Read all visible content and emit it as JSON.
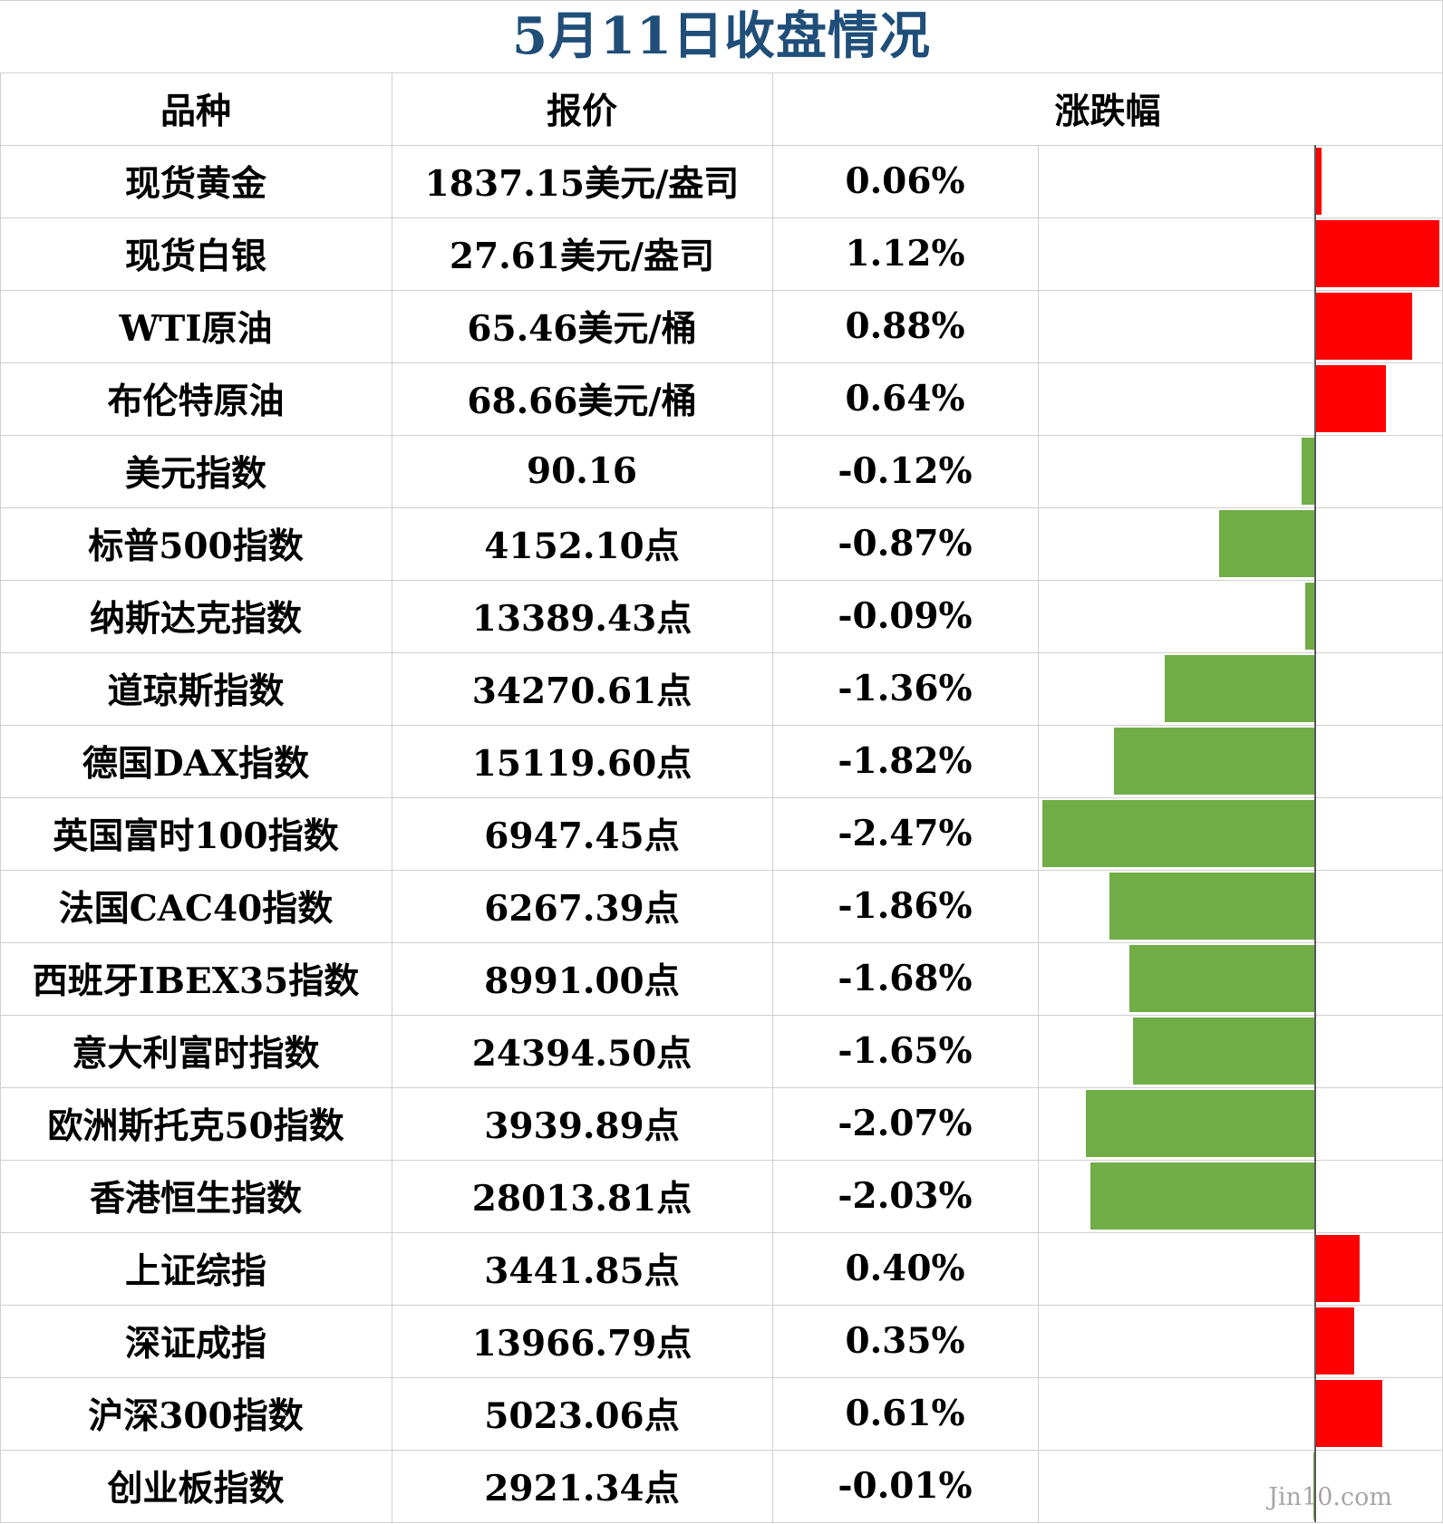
{
  "title": "5月11日收盘情况",
  "headers": {
    "name": "品种",
    "price": "报价",
    "change": "涨跌幅"
  },
  "colors": {
    "up": "#ff0000",
    "down": "#70ad47",
    "title": "#1f4e79"
  },
  "watermark": "Jin10.com",
  "chart_data": {
    "type": "bar",
    "orientation": "horizontal",
    "categories": [
      "现货黄金",
      "现货白银",
      "WTI原油",
      "布伦特原油",
      "美元指数",
      "标普500指数",
      "纳斯达克指数",
      "道琼斯指数",
      "德国DAX指数",
      "英国富时100指数",
      "法国CAC40指数",
      "西班牙IBEX35指数",
      "意大利富时指数",
      "欧洲斯托克50指数",
      "香港恒生指数",
      "上证综指",
      "深证成指",
      "沪深300指数",
      "创业板指数"
    ],
    "prices": [
      "1837.15美元/盎司",
      "27.61美元/盎司",
      "65.46美元/桶",
      "68.66美元/桶",
      "90.16",
      "4152.10点",
      "13389.43点",
      "34270.61点",
      "15119.60点",
      "6947.45点",
      "6267.39点",
      "8991.00点",
      "24394.50点",
      "3939.89点",
      "28013.81点",
      "3441.85点",
      "13966.79点",
      "5023.06点",
      "2921.34点"
    ],
    "labels": [
      "0.06%",
      "1.12%",
      "0.88%",
      "0.64%",
      "-0.12%",
      "-0.87%",
      "-0.09%",
      "-1.36%",
      "-1.82%",
      "-2.47%",
      "-1.86%",
      "-1.68%",
      "-1.65%",
      "-2.07%",
      "-2.03%",
      "0.40%",
      "0.35%",
      "0.61%",
      "-0.01%"
    ],
    "values": [
      0.06,
      1.12,
      0.88,
      0.64,
      -0.12,
      -0.87,
      -0.09,
      -1.36,
      -1.82,
      -2.47,
      -1.86,
      -1.68,
      -1.65,
      -2.07,
      -2.03,
      0.4,
      0.35,
      0.61,
      -0.01
    ],
    "xlim": [
      -2.47,
      1.12
    ]
  }
}
